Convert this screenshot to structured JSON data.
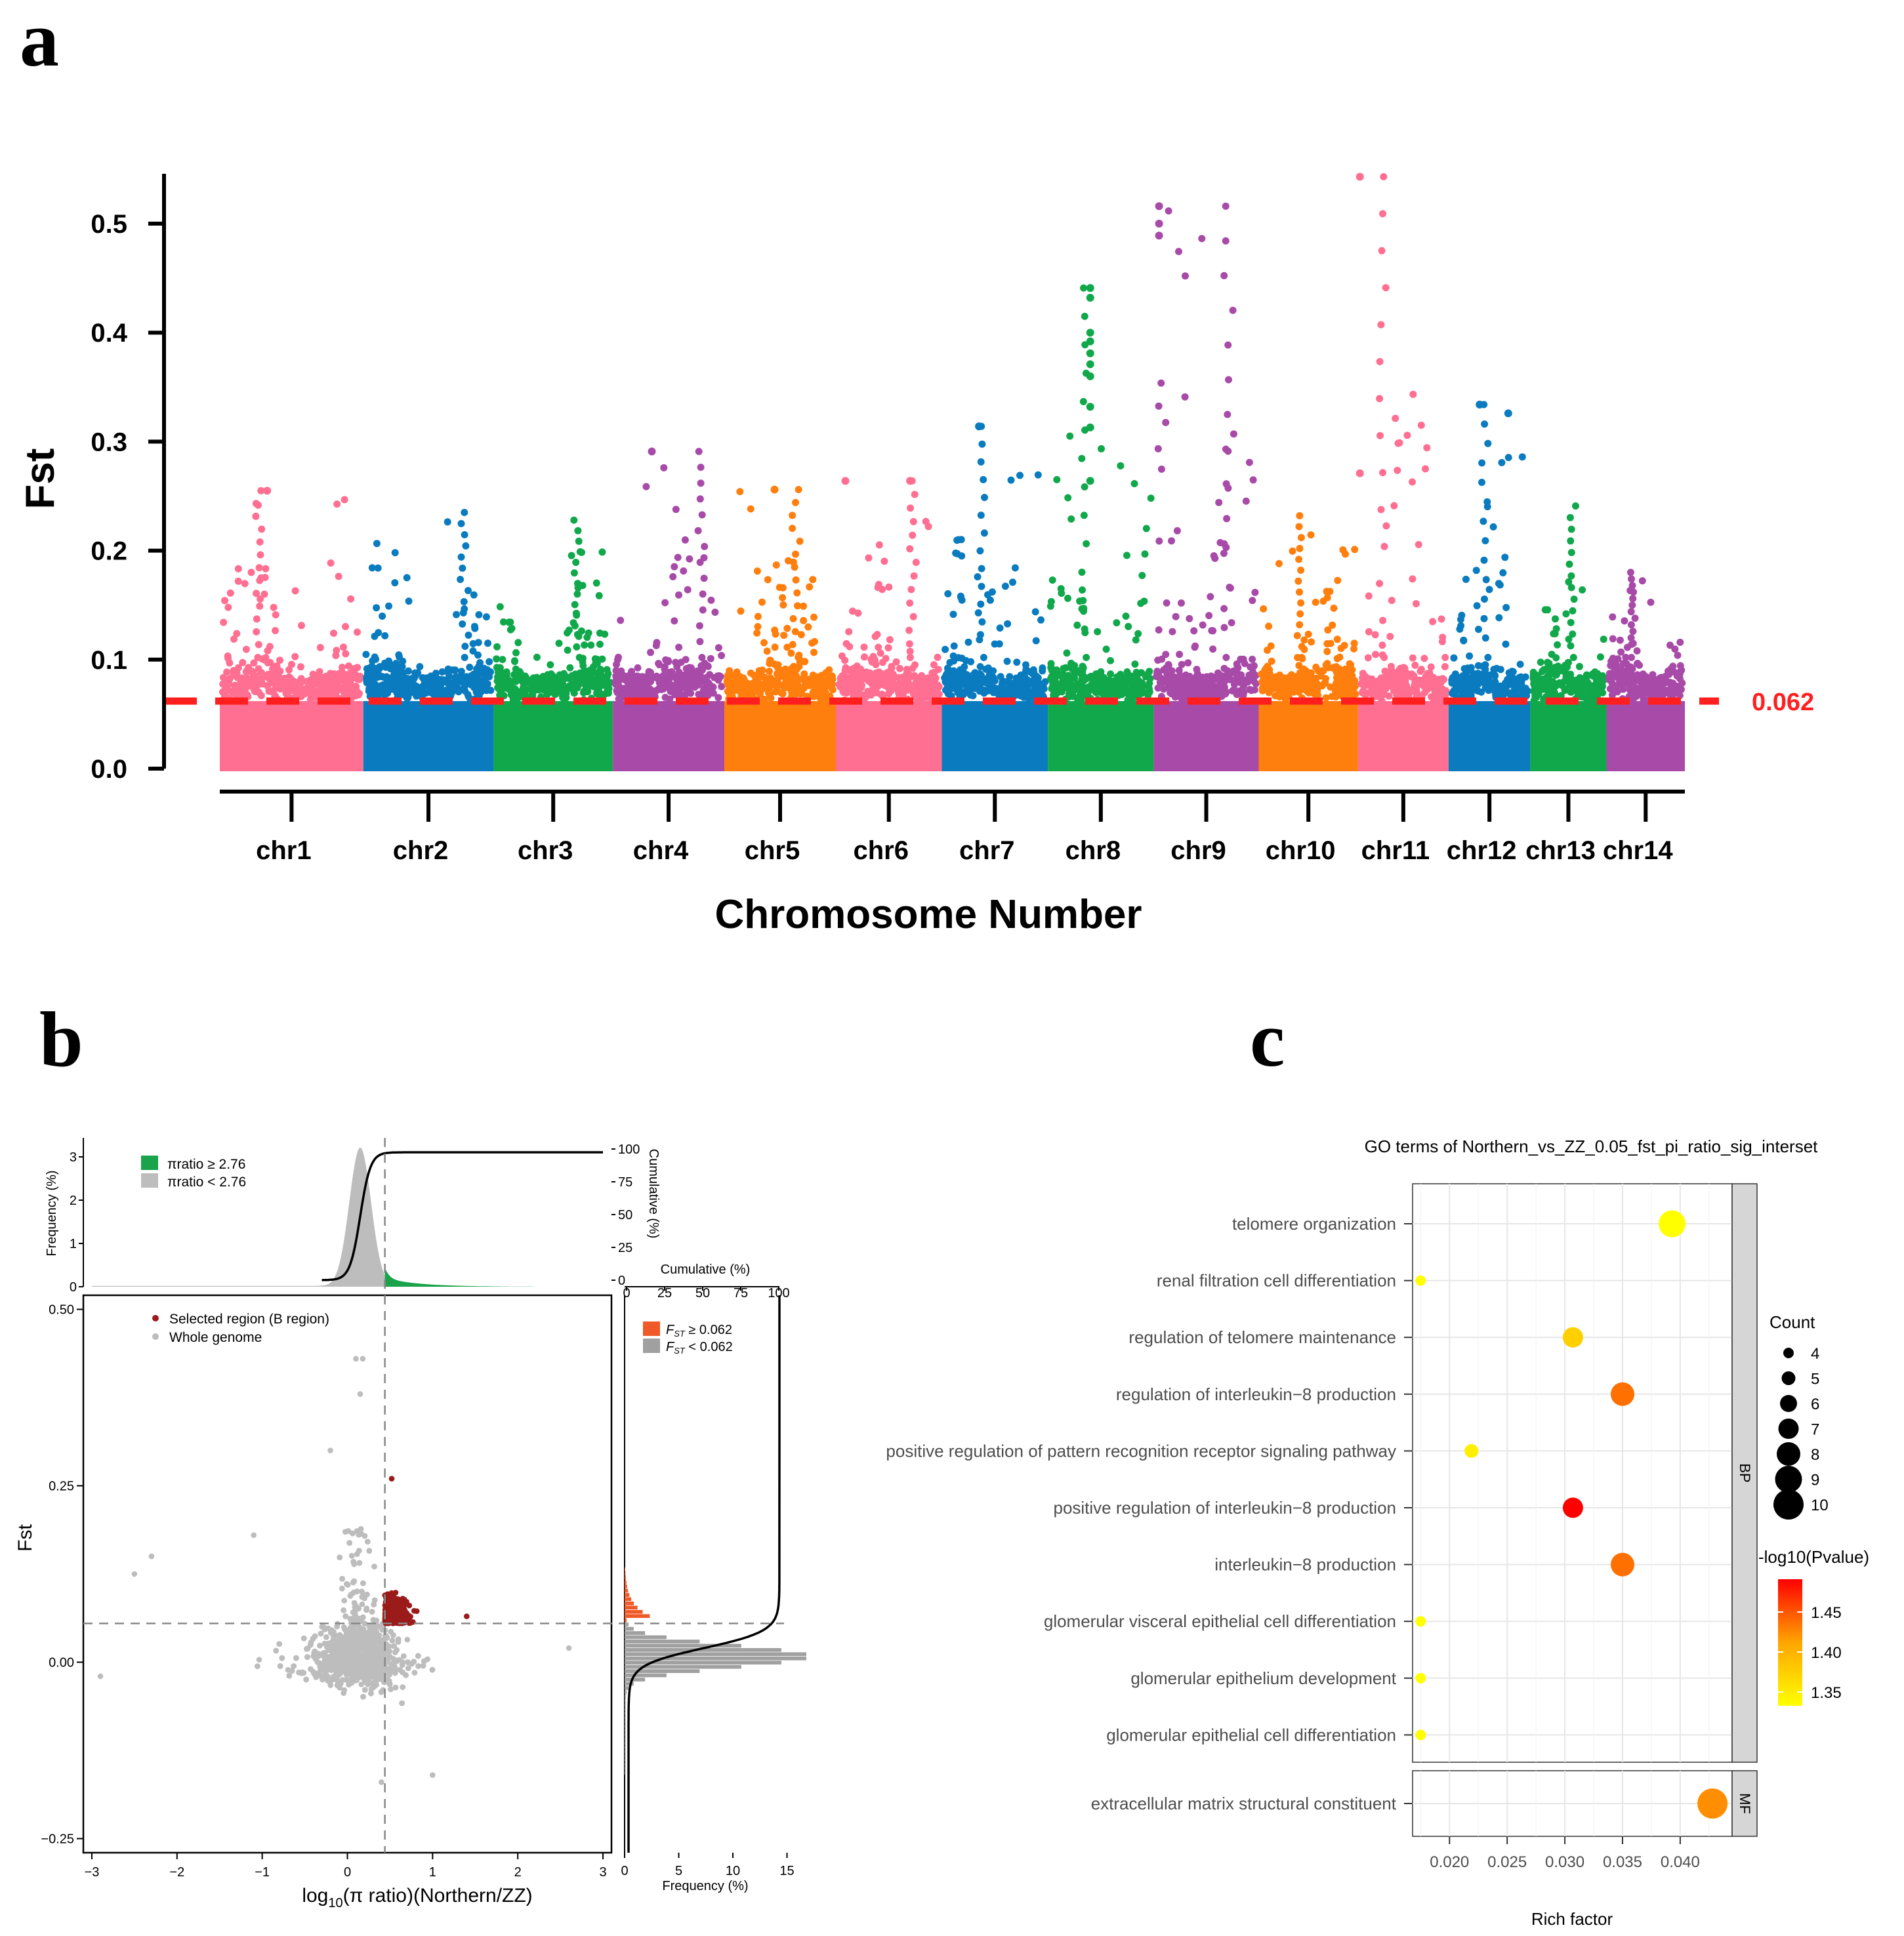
{
  "panel_labels": {
    "a": "a",
    "b": "b",
    "c": "c"
  },
  "chart_data": [
    {
      "type": "scatter",
      "subtype": "manhattan",
      "panel": "a",
      "xlabel": "Chromosome Number",
      "ylabel": "Fst",
      "ylim": [
        0,
        0.55
      ],
      "yticks": [
        "0.0",
        "0.1",
        "0.2",
        "0.3",
        "0.4",
        "0.5"
      ],
      "threshold": 0.062,
      "threshold_label": "0.062",
      "threshold_color": "#ff1f1f",
      "chromosomes": [
        {
          "name": "chr1",
          "color": "#ff6f91",
          "start": 0,
          "end": 1.3,
          "peak": 0.255
        },
        {
          "name": "chr2",
          "color": "#0a7bbf",
          "start": 1.3,
          "end": 2.48,
          "peak": 0.235
        },
        {
          "name": "chr3",
          "color": "#11a84b",
          "start": 2.48,
          "end": 3.56,
          "peak": 0.228
        },
        {
          "name": "chr4",
          "color": "#a84aa8",
          "start": 3.56,
          "end": 4.57,
          "peak": 0.291
        },
        {
          "name": "chr5",
          "color": "#ff7f0e",
          "start": 4.57,
          "end": 5.58,
          "peak": 0.256
        },
        {
          "name": "chr6",
          "color": "#ff6f91",
          "start": 5.58,
          "end": 6.54,
          "peak": 0.264
        },
        {
          "name": "chr7",
          "color": "#0a7bbf",
          "start": 6.54,
          "end": 7.5,
          "peak": 0.314
        },
        {
          "name": "chr8",
          "color": "#11a84b",
          "start": 7.5,
          "end": 8.46,
          "peak": 0.441
        },
        {
          "name": "chr9",
          "color": "#a84aa8",
          "start": 8.46,
          "end": 9.41,
          "peak": 0.516
        },
        {
          "name": "chr10",
          "color": "#ff7f0e",
          "start": 9.41,
          "end": 10.31,
          "peak": 0.232
        },
        {
          "name": "chr11",
          "color": "#ff6f91",
          "start": 10.31,
          "end": 11.13,
          "peak": 0.543
        },
        {
          "name": "chr12",
          "color": "#0a7bbf",
          "start": 11.13,
          "end": 11.87,
          "peak": 0.334
        },
        {
          "name": "chr13",
          "color": "#11a84b",
          "start": 11.87,
          "end": 12.56,
          "peak": 0.241
        },
        {
          "name": "chr14",
          "color": "#a84aa8",
          "start": 12.56,
          "end": 13.27,
          "peak": 0.18
        }
      ],
      "outliers": [
        {
          "chr": "chr7",
          "pos": 0.35,
          "fst": 0.314
        },
        {
          "chr": "chr8",
          "pos": 0.4,
          "fst": 0.441
        },
        {
          "chr": "chr8",
          "pos": 0.4,
          "fst": 0.432
        },
        {
          "chr": "chr8",
          "pos": 0.4,
          "fst": 0.4
        },
        {
          "chr": "chr8",
          "pos": 0.4,
          "fst": 0.392
        },
        {
          "chr": "chr8",
          "pos": 0.4,
          "fst": 0.381
        },
        {
          "chr": "chr8",
          "pos": 0.4,
          "fst": 0.371
        },
        {
          "chr": "chr8",
          "pos": 0.4,
          "fst": 0.36
        },
        {
          "chr": "chr8",
          "pos": 0.4,
          "fst": 0.332
        },
        {
          "chr": "chr8",
          "pos": 0.4,
          "fst": 0.313
        },
        {
          "chr": "chr8",
          "pos": 0.4,
          "fst": 0.264
        },
        {
          "chr": "chr9",
          "pos": 0.05,
          "fst": 0.516
        },
        {
          "chr": "chr9",
          "pos": 0.05,
          "fst": 0.5
        },
        {
          "chr": "chr9",
          "pos": 0.05,
          "fst": 0.489
        },
        {
          "chr": "chr11",
          "pos": 0.02,
          "fst": 0.543
        },
        {
          "chr": "chr11",
          "pos": 0.02,
          "fst": 0.271
        },
        {
          "chr": "chr12",
          "pos": 0.38,
          "fst": 0.334
        },
        {
          "chr": "chr12",
          "pos": 0.73,
          "fst": 0.326
        },
        {
          "chr": "chr4",
          "pos": 0.35,
          "fst": 0.291
        },
        {
          "chr": "chr6",
          "pos": 0.09,
          "fst": 0.264
        },
        {
          "chr": "chr6",
          "pos": 0.7,
          "fst": 0.264
        },
        {
          "chr": "chr1",
          "pos": 0.33,
          "fst": 0.255
        },
        {
          "chr": "chr5",
          "pos": 0.45,
          "fst": 0.256
        }
      ]
    },
    {
      "type": "scatter",
      "subtype": "pi-ratio-vs-fst",
      "panel": "b",
      "xlabel": "log10(π ratio)(Northern/ZZ)",
      "xlabel_main": "log",
      "xlabel_sub": "10",
      "xlabel_rest": "(π ratio)(Northern/ZZ)",
      "ylabel": "Fst",
      "xlim": [
        -3.1,
        3.1
      ],
      "ylim": [
        -0.27,
        0.52
      ],
      "xticks": [
        "-3",
        "-2",
        "-1",
        "0",
        "1",
        "2",
        "3"
      ],
      "yticks": [
        "-0.25",
        "0.00",
        "0.25",
        "0.50"
      ],
      "x_threshold": 0.44,
      "y_threshold": 0.055,
      "legend": [
        {
          "label": "Selected region (B region)",
          "color": "#9b1b1b"
        },
        {
          "label": "Whole genome",
          "color": "#bdbdbd"
        }
      ],
      "top_hist": {
        "ylabel": "Frequency (%)",
        "yticks": [
          "0",
          "1",
          "2",
          "3"
        ],
        "right_label": "Cumulative (%)",
        "right_ticks": [
          "0",
          "25",
          "50",
          "75",
          "100"
        ],
        "legend": [
          {
            "label": "πratio ≥ 2.76",
            "color": "#1aa34a"
          },
          {
            "label": "πratio < 2.76",
            "color": "#bdbdbd"
          }
        ]
      },
      "right_hist": {
        "xlabel": "Frequency (%)",
        "xticks": [
          "0",
          "5",
          "10",
          "15"
        ],
        "top_label": "Cumulative (%)",
        "top_ticks": [
          "0",
          "25",
          "50",
          "75",
          "100"
        ],
        "legend": [
          {
            "label": "F",
            "sub": "ST",
            "rest": " ≥ 0.062",
            "color": "#f05a28"
          },
          {
            "label": "F",
            "sub": "ST",
            "rest": " < 0.062",
            "color": "#a0a0a0"
          }
        ]
      }
    },
    {
      "type": "scatter",
      "subtype": "go-enrichment-bubble",
      "panel": "c",
      "title": "GO terms of Northern_vs_ZZ_0.05_fst_pi_ratio_sig_interset",
      "xlabel": "Rich factor",
      "xlim": [
        0.0168,
        0.0445
      ],
      "xticks": [
        "0.020",
        "0.025",
        "0.030",
        "0.035",
        "0.040"
      ],
      "facets": [
        "BP",
        "MF"
      ],
      "terms": [
        {
          "term": "telomere organization",
          "facet": "BP",
          "rich": 0.0393,
          "count": 9,
          "logp": 1.33
        },
        {
          "term": "renal filtration cell differentiation",
          "facet": "BP",
          "rich": 0.0175,
          "count": 4,
          "logp": 1.33
        },
        {
          "term": "regulation of telomere maintenance",
          "facet": "BP",
          "rich": 0.0307,
          "count": 7,
          "logp": 1.36
        },
        {
          "term": "regulation of interleukin−8 production",
          "facet": "BP",
          "rich": 0.035,
          "count": 8,
          "logp": 1.42
        },
        {
          "term": "positive regulation of pattern recognition receptor signaling pathway",
          "facet": "BP",
          "rich": 0.0219,
          "count": 5,
          "logp": 1.34
        },
        {
          "term": "positive regulation of interleukin−8 production",
          "facet": "BP",
          "rich": 0.0307,
          "count": 7,
          "logp": 1.49
        },
        {
          "term": "interleukin−8 production",
          "facet": "BP",
          "rich": 0.035,
          "count": 8,
          "logp": 1.42
        },
        {
          "term": "glomerular visceral epithelial cell differentiation",
          "facet": "BP",
          "rich": 0.0175,
          "count": 4,
          "logp": 1.33
        },
        {
          "term": "glomerular epithelium development",
          "facet": "BP",
          "rich": 0.0175,
          "count": 4,
          "logp": 1.33
        },
        {
          "term": "glomerular epithelial cell differentiation",
          "facet": "BP",
          "rich": 0.0175,
          "count": 4,
          "logp": 1.33
        },
        {
          "term": "extracellular matrix structural constituent",
          "facet": "MF",
          "rich": 0.0428,
          "count": 10,
          "logp": 1.4
        }
      ],
      "size_legend_title": "Count",
      "size_legend": [
        "4",
        "5",
        "6",
        "7",
        "8",
        "9",
        "10"
      ],
      "color_legend_title": "-log10(Pvalue)",
      "color_legend_ticks": [
        "1.45",
        "1.40",
        "1.35"
      ],
      "color_low": "#ffff00",
      "color_high": "#ff0000"
    }
  ]
}
